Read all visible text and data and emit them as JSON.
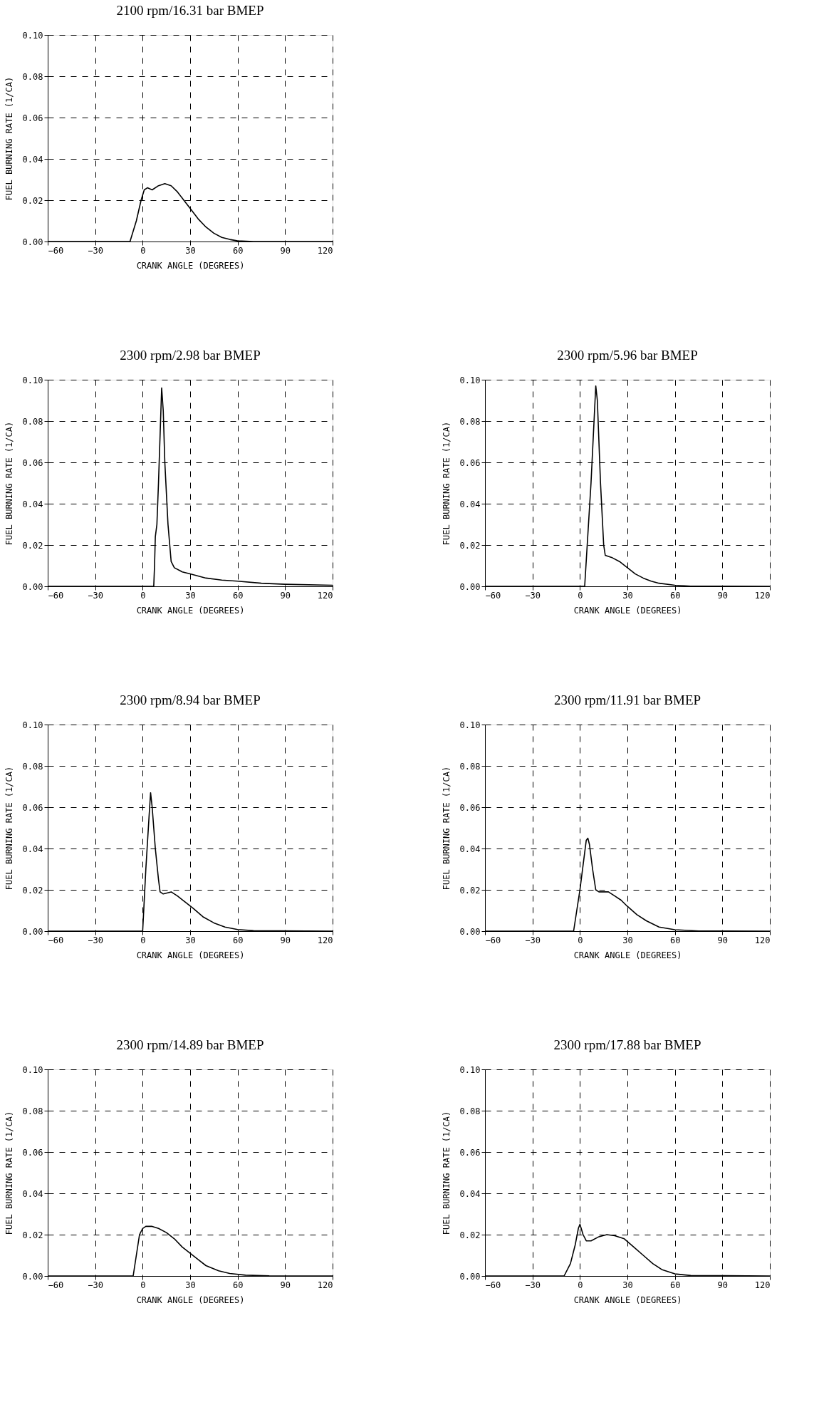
{
  "chart_data": [
    {
      "type": "line",
      "title": "2100 rpm/16.31 bar BMEP",
      "xlabel": "CRANK ANGLE (DEGREES)",
      "ylabel": "FUEL BURNING RATE (1/CA)",
      "color": "#000000",
      "grid": true,
      "x": [
        -60,
        -8,
        -4,
        -1,
        1,
        3,
        6,
        10,
        14,
        18,
        22,
        26,
        30,
        35,
        40,
        45,
        50,
        55,
        60,
        70,
        120
      ],
      "values": [
        0,
        0,
        0.01,
        0.02,
        0.025,
        0.026,
        0.025,
        0.027,
        0.028,
        0.027,
        0.024,
        0.02,
        0.016,
        0.011,
        0.007,
        0.004,
        0.002,
        0.001,
        0.0003,
        0,
        0
      ],
      "xlim": [
        -60,
        120
      ],
      "ylim": [
        0,
        0.1
      ],
      "xticks": [
        -60,
        -30,
        0,
        30,
        60,
        90,
        120
      ],
      "yticks": [
        {
          "value": 0,
          "label": "0.00"
        },
        {
          "value": 0.02,
          "label": "0.02"
        },
        {
          "value": 0.04,
          "label": "0.04"
        },
        {
          "value": 0.06,
          "label": "0.06"
        },
        {
          "value": 0.08,
          "label": "0.08"
        },
        {
          "value": 0.1,
          "label": "0.10"
        }
      ]
    },
    {
      "type": "line",
      "title": "2300 rpm/2.98 bar BMEP",
      "xlabel": "CRANK ANGLE (DEGREES)",
      "ylabel": "FUEL BURNING RATE (1/CA)",
      "color": "#000000",
      "grid": true,
      "x": [
        -60,
        7,
        7.5,
        8,
        9,
        10,
        12,
        13,
        14,
        16,
        18,
        20,
        25,
        30,
        40,
        50,
        60,
        75,
        90,
        120
      ],
      "values": [
        0,
        0,
        0.01,
        0.024,
        0.03,
        0.05,
        0.096,
        0.085,
        0.06,
        0.03,
        0.012,
        0.009,
        0.007,
        0.006,
        0.004,
        0.003,
        0.0025,
        0.0015,
        0.001,
        0.0005
      ],
      "xlim": [
        -60,
        120
      ],
      "ylim": [
        0,
        0.1
      ],
      "xticks": [
        -60,
        -30,
        0,
        30,
        60,
        90,
        120
      ],
      "yticks": [
        {
          "value": 0,
          "label": "0.00"
        },
        {
          "value": 0.02,
          "label": "0.02"
        },
        {
          "value": 0.04,
          "label": "0.04"
        },
        {
          "value": 0.06,
          "label": "0.06"
        },
        {
          "value": 0.08,
          "label": "0.08"
        },
        {
          "value": 0.1,
          "label": "0.10"
        }
      ]
    },
    {
      "type": "line",
      "title": "2300 rpm/5.96 bar BMEP",
      "xlabel": "CRANK ANGLE (DEGREES)",
      "ylabel": "FUEL BURNING RATE (1/CA)",
      "color": "#000000",
      "grid": true,
      "x": [
        -60,
        3,
        7,
        10,
        11,
        13,
        15,
        16,
        20,
        25,
        30,
        35,
        40,
        45,
        50,
        60,
        70,
        120
      ],
      "values": [
        0,
        0,
        0.05,
        0.097,
        0.09,
        0.05,
        0.02,
        0.015,
        0.014,
        0.012,
        0.009,
        0.006,
        0.004,
        0.0025,
        0.0015,
        0.0005,
        0.0001,
        0
      ],
      "xlim": [
        -60,
        120
      ],
      "ylim": [
        0,
        0.1
      ],
      "xticks": [
        -60,
        -30,
        0,
        30,
        60,
        90,
        120
      ],
      "yticks": [
        {
          "value": 0,
          "label": "0.00"
        },
        {
          "value": 0.02,
          "label": "0.02"
        },
        {
          "value": 0.04,
          "label": "0.04"
        },
        {
          "value": 0.06,
          "label": "0.06"
        },
        {
          "value": 0.08,
          "label": "0.08"
        },
        {
          "value": 0.1,
          "label": "0.10"
        }
      ]
    },
    {
      "type": "line",
      "title": "2300 rpm/8.94 bar BMEP",
      "xlabel": "CRANK ANGLE (DEGREES)",
      "ylabel": "FUEL BURNING RATE (1/CA)",
      "color": "#000000",
      "grid": true,
      "x": [
        -60,
        0,
        2,
        4,
        5,
        6,
        8,
        10,
        11,
        13,
        18,
        22,
        27,
        32,
        38,
        45,
        52,
        60,
        70,
        120
      ],
      "values": [
        0,
        0,
        0.03,
        0.055,
        0.067,
        0.06,
        0.04,
        0.025,
        0.019,
        0.018,
        0.019,
        0.017,
        0.014,
        0.011,
        0.007,
        0.004,
        0.002,
        0.0008,
        0.0002,
        0
      ],
      "xlim": [
        -60,
        120
      ],
      "ylim": [
        0,
        0.1
      ],
      "xticks": [
        -60,
        -30,
        0,
        30,
        60,
        90,
        120
      ],
      "yticks": [
        {
          "value": 0,
          "label": "0.00"
        },
        {
          "value": 0.02,
          "label": "0.02"
        },
        {
          "value": 0.04,
          "label": "0.04"
        },
        {
          "value": 0.06,
          "label": "0.06"
        },
        {
          "value": 0.08,
          "label": "0.08"
        },
        {
          "value": 0.1,
          "label": "0.10"
        }
      ]
    },
    {
      "type": "line",
      "title": "2300 rpm/11.91 bar BMEP",
      "xlabel": "CRANK ANGLE (DEGREES)",
      "ylabel": "FUEL BURNING RATE (1/CA)",
      "color": "#000000",
      "grid": true,
      "x": [
        -60,
        -4,
        -2,
        0,
        2,
        4,
        5,
        6,
        8,
        10,
        12,
        18,
        22,
        26,
        30,
        36,
        42,
        50,
        60,
        75,
        120
      ],
      "values": [
        0,
        0,
        0.01,
        0.02,
        0.032,
        0.044,
        0.045,
        0.042,
        0.03,
        0.02,
        0.019,
        0.019,
        0.017,
        0.015,
        0.012,
        0.008,
        0.005,
        0.002,
        0.0007,
        0.0001,
        0
      ],
      "xlim": [
        -60,
        120
      ],
      "ylim": [
        0,
        0.1
      ],
      "xticks": [
        -60,
        -30,
        0,
        30,
        60,
        90,
        120
      ],
      "yticks": [
        {
          "value": 0,
          "label": "0.00"
        },
        {
          "value": 0.02,
          "label": "0.02"
        },
        {
          "value": 0.04,
          "label": "0.04"
        },
        {
          "value": 0.06,
          "label": "0.06"
        },
        {
          "value": 0.08,
          "label": "0.08"
        },
        {
          "value": 0.1,
          "label": "0.10"
        }
      ]
    },
    {
      "type": "line",
      "title": "2300 rpm/14.89 bar BMEP",
      "xlabel": "CRANK ANGLE (DEGREES)",
      "ylabel": "FUEL BURNING RATE (1/CA)",
      "color": "#000000",
      "grid": true,
      "x": [
        -60,
        -6,
        -4,
        -2,
        0,
        2,
        6,
        10,
        15,
        20,
        25,
        30,
        35,
        40,
        48,
        55,
        65,
        80,
        120
      ],
      "values": [
        0,
        0,
        0.01,
        0.02,
        0.023,
        0.024,
        0.024,
        0.023,
        0.021,
        0.018,
        0.014,
        0.011,
        0.008,
        0.005,
        0.0025,
        0.0012,
        0.0004,
        0.0001,
        0
      ],
      "xlim": [
        -60,
        120
      ],
      "ylim": [
        0,
        0.1
      ],
      "xticks": [
        -60,
        -30,
        0,
        30,
        60,
        90,
        120
      ],
      "yticks": [
        {
          "value": 0,
          "label": "0.00"
        },
        {
          "value": 0.02,
          "label": "0.02"
        },
        {
          "value": 0.04,
          "label": "0.04"
        },
        {
          "value": 0.06,
          "label": "0.06"
        },
        {
          "value": 0.08,
          "label": "0.08"
        },
        {
          "value": 0.1,
          "label": "0.10"
        }
      ]
    },
    {
      "type": "line",
      "title": "2300 rpm/17.88 bar BMEP",
      "xlabel": "CRANK ANGLE (DEGREES)",
      "ylabel": "FUEL BURNING RATE (1/CA)",
      "color": "#000000",
      "grid": true,
      "x": [
        -60,
        -10,
        -6,
        -3,
        -1,
        0,
        2,
        4,
        7,
        12,
        17,
        22,
        28,
        34,
        40,
        46,
        52,
        60,
        70,
        120
      ],
      "values": [
        0,
        0,
        0.006,
        0.015,
        0.023,
        0.025,
        0.02,
        0.017,
        0.017,
        0.019,
        0.02,
        0.0195,
        0.018,
        0.014,
        0.01,
        0.006,
        0.003,
        0.001,
        0.0002,
        0
      ],
      "xlim": [
        -60,
        120
      ],
      "ylim": [
        0,
        0.1
      ],
      "xticks": [
        -60,
        -30,
        0,
        30,
        60,
        90,
        120
      ],
      "yticks": [
        {
          "value": 0,
          "label": "0.00"
        },
        {
          "value": 0.02,
          "label": "0.02"
        },
        {
          "value": 0.04,
          "label": "0.04"
        },
        {
          "value": 0.06,
          "label": "0.06"
        },
        {
          "value": 0.08,
          "label": "0.08"
        },
        {
          "value": 0.1,
          "label": "0.10"
        }
      ]
    }
  ]
}
